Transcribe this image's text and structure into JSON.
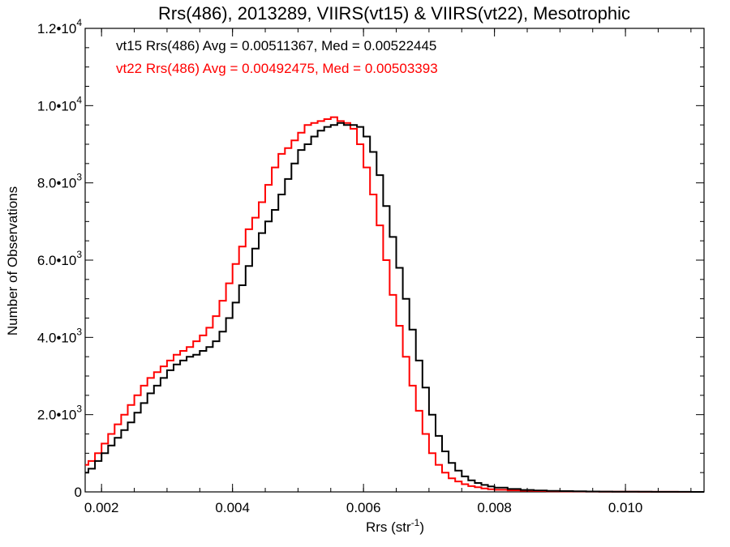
{
  "chart_data": {
    "type": "line",
    "title": "Rrs(486), 2013289, VIIRS(vt15) & VIIRS(vt22), Mesotrophic",
    "xlabel": "Rrs (str",
    "xlabel_sup": "-1",
    "xlabel_suffix": ")",
    "ylabel": "Number of Observations",
    "xlim": [
      0.00175,
      0.0112
    ],
    "ylim": [
      0,
      12000
    ],
    "x_ticks": [
      {
        "value": 0.002,
        "label": "0.002"
      },
      {
        "value": 0.004,
        "label": "0.004"
      },
      {
        "value": 0.006,
        "label": "0.006"
      },
      {
        "value": 0.008,
        "label": "0.008"
      },
      {
        "value": 0.01,
        "label": "0.010"
      }
    ],
    "y_ticks": [
      {
        "value": 0,
        "mant": "0",
        "exp": ""
      },
      {
        "value": 2000,
        "mant": "2.0•1",
        "exp": "3"
      },
      {
        "value": 4000,
        "mant": "4.0•1",
        "exp": "3"
      },
      {
        "value": 6000,
        "mant": "6.0•1",
        "exp": "3"
      },
      {
        "value": 8000,
        "mant": "8.0•1",
        "exp": "3"
      },
      {
        "value": 10000,
        "mant": "1.0•1",
        "exp": "4"
      },
      {
        "value": 12000,
        "mant": "1.2•1",
        "exp": "4"
      }
    ],
    "legend_placement": "top-left",
    "grid": false,
    "series": [
      {
        "name": "vt15 Rrs(486) Avg = 0.00511367, Med = 0.00522445",
        "color": "#000000",
        "x": [
          0.00175,
          0.0018,
          0.0019,
          0.002,
          0.0021,
          0.0022,
          0.0023,
          0.0024,
          0.0025,
          0.0026,
          0.0027,
          0.0028,
          0.0029,
          0.003,
          0.0031,
          0.0032,
          0.0033,
          0.0034,
          0.0035,
          0.0036,
          0.0037,
          0.0038,
          0.0039,
          0.004,
          0.0041,
          0.0042,
          0.0043,
          0.0044,
          0.0045,
          0.0046,
          0.0047,
          0.0048,
          0.0049,
          0.005,
          0.0051,
          0.0052,
          0.0053,
          0.0054,
          0.0055,
          0.0056,
          0.0057,
          0.0058,
          0.0059,
          0.006,
          0.0061,
          0.0062,
          0.0063,
          0.0064,
          0.0065,
          0.0066,
          0.0067,
          0.0068,
          0.0069,
          0.007,
          0.0071,
          0.0072,
          0.0073,
          0.0074,
          0.0075,
          0.0076,
          0.0077,
          0.0078,
          0.0079,
          0.008,
          0.0082,
          0.0084,
          0.0086,
          0.0088,
          0.009,
          0.0092,
          0.0094,
          0.0096,
          0.0098,
          0.01,
          0.0102,
          0.0104,
          0.0106,
          0.0108,
          0.011,
          0.0112
        ],
        "y": [
          500,
          600,
          800,
          1000,
          1200,
          1400,
          1600,
          1800,
          2050,
          2300,
          2550,
          2750,
          2950,
          3150,
          3300,
          3400,
          3500,
          3550,
          3650,
          3750,
          3900,
          4150,
          4500,
          4900,
          5350,
          5850,
          6300,
          6700,
          7000,
          7300,
          7700,
          8100,
          8500,
          8850,
          9000,
          9200,
          9350,
          9450,
          9500,
          9550,
          9500,
          9500,
          9450,
          9200,
          8800,
          8200,
          7400,
          6600,
          5800,
          5000,
          4200,
          3400,
          2700,
          2000,
          1450,
          1050,
          750,
          550,
          400,
          300,
          230,
          180,
          140,
          110,
          75,
          50,
          35,
          25,
          20,
          15,
          10,
          8,
          6,
          5,
          4,
          3,
          2,
          2,
          1,
          1
        ]
      },
      {
        "name": "vt22 Rrs(486) Avg = 0.00492475, Med = 0.00503393",
        "color": "#ff0000",
        "x": [
          0.00175,
          0.0018,
          0.0019,
          0.002,
          0.0021,
          0.0022,
          0.0023,
          0.0024,
          0.0025,
          0.0026,
          0.0027,
          0.0028,
          0.0029,
          0.003,
          0.0031,
          0.0032,
          0.0033,
          0.0034,
          0.0035,
          0.0036,
          0.0037,
          0.0038,
          0.0039,
          0.004,
          0.0041,
          0.0042,
          0.0043,
          0.0044,
          0.0045,
          0.0046,
          0.0047,
          0.0048,
          0.0049,
          0.005,
          0.0051,
          0.0052,
          0.0053,
          0.0054,
          0.0055,
          0.0056,
          0.0057,
          0.0058,
          0.0059,
          0.006,
          0.0061,
          0.0062,
          0.0063,
          0.0064,
          0.0065,
          0.0066,
          0.0067,
          0.0068,
          0.0069,
          0.007,
          0.0071,
          0.0072,
          0.0073,
          0.0074,
          0.0075,
          0.0076,
          0.0077,
          0.0078,
          0.0079,
          0.008,
          0.0082,
          0.0084,
          0.0086,
          0.0088,
          0.009,
          0.0092,
          0.0094,
          0.0096,
          0.0098,
          0.01,
          0.0102,
          0.0104,
          0.0106,
          0.0108,
          0.011,
          0.0112
        ],
        "y": [
          700,
          800,
          1000,
          1250,
          1500,
          1750,
          2000,
          2250,
          2500,
          2750,
          2950,
          3100,
          3250,
          3400,
          3550,
          3650,
          3750,
          3900,
          4050,
          4250,
          4550,
          4950,
          5400,
          5900,
          6350,
          6800,
          7100,
          7500,
          7950,
          8400,
          8750,
          8900,
          9100,
          9300,
          9500,
          9550,
          9600,
          9650,
          9700,
          9600,
          9550,
          9400,
          9000,
          8400,
          7700,
          6900,
          6000,
          5100,
          4300,
          3500,
          2750,
          2100,
          1500,
          1000,
          700,
          500,
          350,
          270,
          200,
          150,
          120,
          90,
          70,
          55,
          40,
          30,
          20,
          15,
          12,
          10,
          8,
          6,
          5,
          4,
          3,
          2,
          2,
          1,
          1,
          1
        ]
      }
    ]
  }
}
